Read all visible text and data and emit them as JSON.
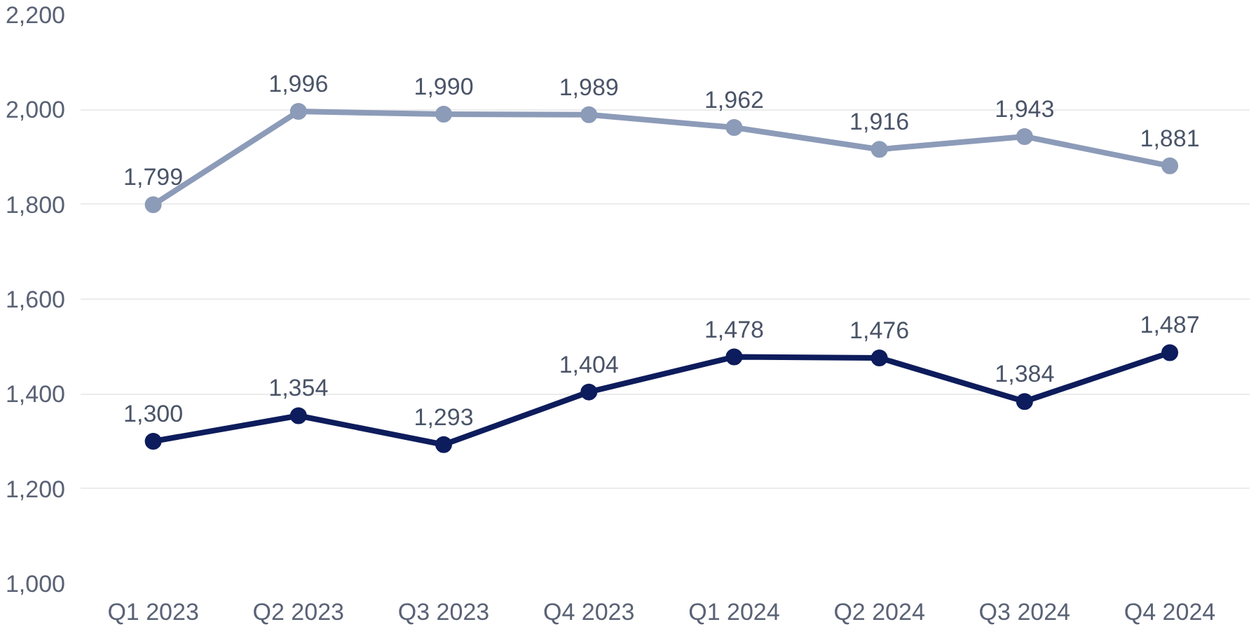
{
  "chart_data": {
    "type": "line",
    "categories": [
      "Q1 2023",
      "Q2 2023",
      "Q3 2023",
      "Q4 2023",
      "Q1 2024",
      "Q2 2024",
      "Q3 2024",
      "Q4 2024"
    ],
    "series": [
      {
        "color": "#8c9bb8",
        "values": [
          1799,
          1996,
          1990,
          1989,
          1962,
          1916,
          1943,
          1881
        ],
        "value_labels": [
          "1,799",
          "1,996",
          "1,990",
          "1,989",
          "1,962",
          "1,916",
          "1,943",
          "1,881"
        ]
      },
      {
        "color": "#0d1c5c",
        "values": [
          1300,
          1354,
          1293,
          1404,
          1478,
          1476,
          1384,
          1487
        ],
        "value_labels": [
          "1,300",
          "1,354",
          "1,293",
          "1,404",
          "1,478",
          "1,476",
          "1,384",
          "1,487"
        ]
      }
    ],
    "ylim": [
      1000,
      2200
    ],
    "yticks": [
      {
        "value": 1000,
        "label": "1,000"
      },
      {
        "value": 1200,
        "label": "1,200"
      },
      {
        "value": 1400,
        "label": "1,400"
      },
      {
        "value": 1600,
        "label": "1,600"
      },
      {
        "value": 1800,
        "label": "1,800"
      },
      {
        "value": 2000,
        "label": "2,000"
      },
      {
        "value": 2200,
        "label": "2,200"
      }
    ],
    "grid": "y",
    "marker": "circle",
    "line_style": "solid"
  }
}
